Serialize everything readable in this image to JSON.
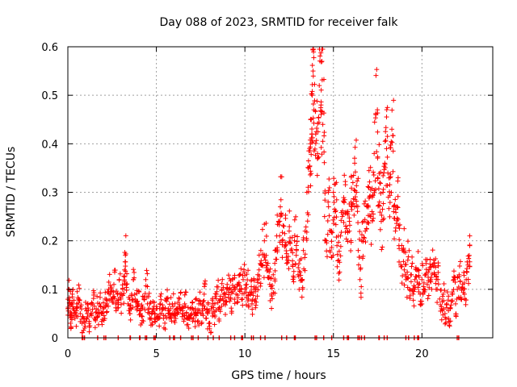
{
  "colors": {
    "series": "#ff0000",
    "grid": "#a0a0a0",
    "frame": "#000000"
  },
  "chart_data": {
    "type": "scatter",
    "title": "Day 088 of 2023, SRMTID for receiver falk",
    "xlabel": "GPS time / hours",
    "ylabel": "SRMTID / TECUs",
    "xlim": [
      0,
      24
    ],
    "ylim": [
      0,
      0.6
    ],
    "xticks": [
      0,
      5,
      10,
      15,
      20
    ],
    "xtick_labels": [
      "0",
      "5",
      "10",
      "15",
      "20"
    ],
    "yticks": [
      0,
      0.1,
      0.2,
      0.3,
      0.4,
      0.5,
      0.6
    ],
    "ytick_labels": [
      "0",
      "0.1",
      "0.2",
      "0.3",
      "0.4",
      "0.5",
      "0.6"
    ],
    "grid": true,
    "marker": "+",
    "series": [
      {
        "name": "SRMTID",
        "points": [
          [
            0.0,
            0.06
          ],
          [
            0.05,
            0.1
          ],
          [
            0.1,
            0.07
          ],
          [
            0.15,
            0.03
          ],
          [
            0.2,
            0.05
          ],
          [
            0.25,
            0.09
          ],
          [
            0.3,
            0.06
          ],
          [
            0.4,
            0.04
          ],
          [
            0.5,
            0.07
          ],
          [
            0.6,
            0.08
          ],
          [
            0.7,
            0.05
          ],
          [
            0.8,
            0.03
          ],
          [
            0.9,
            0.04
          ],
          [
            1.0,
            0.06
          ],
          [
            1.1,
            0.05
          ],
          [
            1.2,
            0.03
          ],
          [
            1.3,
            0.05
          ],
          [
            1.4,
            0.07
          ],
          [
            1.5,
            0.04
          ],
          [
            1.6,
            0.06
          ],
          [
            1.7,
            0.05
          ],
          [
            1.8,
            0.07
          ],
          [
            1.9,
            0.05
          ],
          [
            2.0,
            0.06
          ],
          [
            2.1,
            0.08
          ],
          [
            2.2,
            0.07
          ],
          [
            2.3,
            0.1
          ],
          [
            2.4,
            0.09
          ],
          [
            2.5,
            0.08
          ],
          [
            2.6,
            0.11
          ],
          [
            2.7,
            0.07
          ],
          [
            2.8,
            0.09
          ],
          [
            2.9,
            0.12
          ],
          [
            3.0,
            0.08
          ],
          [
            3.1,
            0.1
          ],
          [
            3.2,
            0.14
          ],
          [
            3.25,
            0.17
          ],
          [
            3.3,
            0.11
          ],
          [
            3.4,
            0.07
          ],
          [
            3.5,
            0.05
          ],
          [
            3.6,
            0.09
          ],
          [
            3.7,
            0.12
          ],
          [
            3.8,
            0.08
          ],
          [
            3.9,
            0.06
          ],
          [
            4.0,
            0.07
          ],
          [
            4.1,
            0.05
          ],
          [
            4.2,
            0.06
          ],
          [
            4.3,
            0.08
          ],
          [
            4.4,
            0.12
          ],
          [
            4.5,
            0.07
          ],
          [
            4.6,
            0.05
          ],
          [
            4.7,
            0.04
          ],
          [
            4.8,
            0.06
          ],
          [
            4.9,
            0.05
          ],
          [
            5.0,
            0.06
          ],
          [
            5.1,
            0.04
          ],
          [
            5.2,
            0.07
          ],
          [
            5.3,
            0.05
          ],
          [
            5.4,
            0.04
          ],
          [
            5.5,
            0.06
          ],
          [
            5.6,
            0.08
          ],
          [
            5.7,
            0.05
          ],
          [
            5.8,
            0.06
          ],
          [
            5.9,
            0.07
          ],
          [
            6.0,
            0.05
          ],
          [
            6.1,
            0.04
          ],
          [
            6.2,
            0.06
          ],
          [
            6.3,
            0.08
          ],
          [
            6.4,
            0.06
          ],
          [
            6.5,
            0.05
          ],
          [
            6.6,
            0.07
          ],
          [
            6.7,
            0.05
          ],
          [
            6.8,
            0.04
          ],
          [
            6.9,
            0.06
          ],
          [
            7.0,
            0.05
          ],
          [
            7.1,
            0.04
          ],
          [
            7.2,
            0.06
          ],
          [
            7.3,
            0.05
          ],
          [
            7.4,
            0.07
          ],
          [
            7.5,
            0.05
          ],
          [
            7.6,
            0.06
          ],
          [
            7.7,
            0.09
          ],
          [
            7.8,
            0.04
          ],
          [
            7.9,
            0.05
          ],
          [
            8.0,
            0.03
          ],
          [
            8.1,
            0.06
          ],
          [
            8.2,
            0.05
          ],
          [
            8.3,
            0.07
          ],
          [
            8.4,
            0.09
          ],
          [
            8.5,
            0.06
          ],
          [
            8.6,
            0.08
          ],
          [
            8.7,
            0.1
          ],
          [
            8.8,
            0.07
          ],
          [
            8.9,
            0.09
          ],
          [
            9.0,
            0.11
          ],
          [
            9.1,
            0.1
          ],
          [
            9.2,
            0.08
          ],
          [
            9.3,
            0.12
          ],
          [
            9.4,
            0.1
          ],
          [
            9.5,
            0.09
          ],
          [
            9.6,
            0.11
          ],
          [
            9.7,
            0.13
          ],
          [
            9.8,
            0.1
          ],
          [
            9.9,
            0.12
          ],
          [
            10.0,
            0.1
          ],
          [
            10.1,
            0.11
          ],
          [
            10.2,
            0.08
          ],
          [
            10.3,
            0.09
          ],
          [
            10.4,
            0.07
          ],
          [
            10.5,
            0.1
          ],
          [
            10.6,
            0.08
          ],
          [
            10.7,
            0.12
          ],
          [
            10.8,
            0.14
          ],
          [
            10.9,
            0.18
          ],
          [
            11.0,
            0.15
          ],
          [
            11.1,
            0.2
          ],
          [
            11.2,
            0.17
          ],
          [
            11.3,
            0.14
          ],
          [
            11.4,
            0.11
          ],
          [
            11.5,
            0.09
          ],
          [
            11.6,
            0.13
          ],
          [
            11.7,
            0.18
          ],
          [
            11.8,
            0.21
          ],
          [
            11.9,
            0.24
          ],
          [
            12.0,
            0.27
          ],
          [
            12.1,
            0.2
          ],
          [
            12.2,
            0.23
          ],
          [
            12.3,
            0.19
          ],
          [
            12.4,
            0.16
          ],
          [
            12.5,
            0.22
          ],
          [
            12.6,
            0.18
          ],
          [
            12.7,
            0.15
          ],
          [
            12.8,
            0.2
          ],
          [
            12.9,
            0.17
          ],
          [
            13.0,
            0.13
          ],
          [
            13.1,
            0.16
          ],
          [
            13.2,
            0.12
          ],
          [
            13.3,
            0.18
          ],
          [
            13.4,
            0.22
          ],
          [
            13.5,
            0.3
          ],
          [
            13.6,
            0.35
          ],
          [
            13.7,
            0.4
          ],
          [
            13.75,
            0.45
          ],
          [
            13.8,
            0.5
          ],
          [
            13.85,
            0.55
          ],
          [
            13.9,
            0.47
          ],
          [
            14.0,
            0.42
          ],
          [
            14.1,
            0.38
          ],
          [
            14.2,
            0.52
          ],
          [
            14.3,
            0.48
          ],
          [
            14.35,
            0.57
          ],
          [
            14.4,
            0.44
          ],
          [
            14.5,
            0.25
          ],
          [
            14.6,
            0.2
          ],
          [
            14.7,
            0.28
          ],
          [
            14.8,
            0.18
          ],
          [
            14.9,
            0.22
          ],
          [
            15.0,
            0.3
          ],
          [
            15.1,
            0.26
          ],
          [
            15.2,
            0.19
          ],
          [
            15.3,
            0.16
          ],
          [
            15.4,
            0.21
          ],
          [
            15.5,
            0.25
          ],
          [
            15.6,
            0.28
          ],
          [
            15.7,
            0.23
          ],
          [
            15.8,
            0.26
          ],
          [
            15.9,
            0.22
          ],
          [
            16.0,
            0.28
          ],
          [
            16.1,
            0.32
          ],
          [
            16.2,
            0.36
          ],
          [
            16.3,
            0.3
          ],
          [
            16.4,
            0.18
          ],
          [
            16.5,
            0.12
          ],
          [
            16.6,
            0.2
          ],
          [
            16.7,
            0.24
          ],
          [
            16.8,
            0.22
          ],
          [
            16.9,
            0.27
          ],
          [
            17.0,
            0.31
          ],
          [
            17.1,
            0.25
          ],
          [
            17.2,
            0.29
          ],
          [
            17.3,
            0.38
          ],
          [
            17.4,
            0.46
          ],
          [
            17.5,
            0.33
          ],
          [
            17.6,
            0.28
          ],
          [
            17.7,
            0.24
          ],
          [
            17.8,
            0.3
          ],
          [
            17.9,
            0.36
          ],
          [
            18.0,
            0.39
          ],
          [
            18.1,
            0.29
          ],
          [
            18.2,
            0.33
          ],
          [
            18.3,
            0.43
          ],
          [
            18.4,
            0.26
          ],
          [
            18.5,
            0.22
          ],
          [
            18.6,
            0.27
          ],
          [
            18.7,
            0.19
          ],
          [
            18.8,
            0.15
          ],
          [
            18.9,
            0.18
          ],
          [
            19.0,
            0.14
          ],
          [
            19.1,
            0.12
          ],
          [
            19.2,
            0.16
          ],
          [
            19.3,
            0.1
          ],
          [
            19.4,
            0.13
          ],
          [
            19.5,
            0.09
          ],
          [
            19.6,
            0.12
          ],
          [
            19.7,
            0.14
          ],
          [
            19.8,
            0.11
          ],
          [
            19.9,
            0.09
          ],
          [
            20.0,
            0.12
          ],
          [
            20.1,
            0.1
          ],
          [
            20.2,
            0.13
          ],
          [
            20.3,
            0.11
          ],
          [
            20.4,
            0.14
          ],
          [
            20.5,
            0.12
          ],
          [
            20.6,
            0.15
          ],
          [
            20.7,
            0.13
          ],
          [
            20.8,
            0.1
          ],
          [
            20.9,
            0.12
          ],
          [
            21.0,
            0.08
          ],
          [
            21.1,
            0.06
          ],
          [
            21.2,
            0.09
          ],
          [
            21.3,
            0.05
          ],
          [
            21.4,
            0.07
          ],
          [
            21.5,
            0.04
          ],
          [
            21.6,
            0.06
          ],
          [
            21.7,
            0.09
          ],
          [
            21.8,
            0.12
          ],
          [
            21.9,
            0.07
          ],
          [
            22.0,
            0.1
          ],
          [
            22.1,
            0.13
          ],
          [
            22.2,
            0.08
          ],
          [
            22.3,
            0.11
          ],
          [
            22.4,
            0.09
          ],
          [
            22.5,
            0.12
          ],
          [
            22.6,
            0.15
          ],
          [
            22.7,
            0.19
          ]
        ]
      }
    ]
  }
}
